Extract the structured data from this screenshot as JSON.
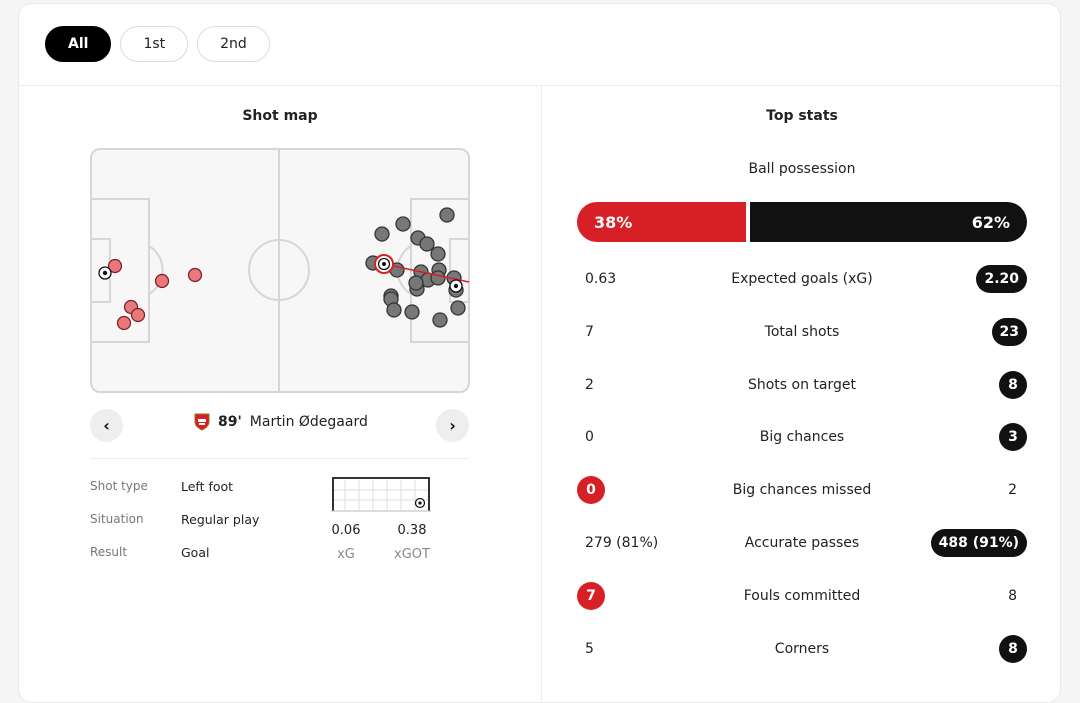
{
  "tabs": [
    {
      "label": "All",
      "active": true
    },
    {
      "label": "1st",
      "active": false
    },
    {
      "label": "2nd",
      "active": false
    }
  ],
  "shot_map": {
    "title": "Shot map",
    "selected_shot": {
      "minute": "89'",
      "player": "Martin Ødegaard"
    },
    "details": [
      {
        "label": "Shot type",
        "value": "Left foot"
      },
      {
        "label": "Situation",
        "value": "Regular play"
      },
      {
        "label": "Result",
        "value": "Goal"
      }
    ],
    "xg": {
      "value": "0.06",
      "label": "xG"
    },
    "xgot": {
      "value": "0.38",
      "label": "xGOT"
    }
  },
  "top_stats": {
    "title": "Top stats",
    "possession": {
      "label": "Ball possession",
      "home": "38%",
      "away": "62%",
      "home_pct": 38
    },
    "rows": [
      {
        "label": "Expected goals (xG)",
        "home": "0.63",
        "away": "2.20",
        "highlight": "away"
      },
      {
        "label": "Total shots",
        "home": "7",
        "away": "23",
        "highlight": "away"
      },
      {
        "label": "Shots on target",
        "home": "2",
        "away": "8",
        "highlight": "away"
      },
      {
        "label": "Big chances",
        "home": "0",
        "away": "3",
        "highlight": "away"
      },
      {
        "label": "Big chances missed",
        "home": "0",
        "away": "2",
        "highlight": "home"
      },
      {
        "label": "Accurate passes",
        "home": "279 (81%)",
        "away": "488 (91%)",
        "highlight": "away"
      },
      {
        "label": "Fouls committed",
        "home": "7",
        "away": "8",
        "highlight": "home"
      },
      {
        "label": "Corners",
        "home": "5",
        "away": "8",
        "highlight": "away"
      }
    ]
  },
  "colors": {
    "home": "#d71f26",
    "home_shot": "#e8787c",
    "away": "#111111",
    "away_shot": "#777777"
  },
  "icons": {
    "prev": "chevron-left-icon",
    "next": "chevron-right-icon",
    "crest": "arsenal-crest-icon",
    "ball": "football-icon"
  }
}
